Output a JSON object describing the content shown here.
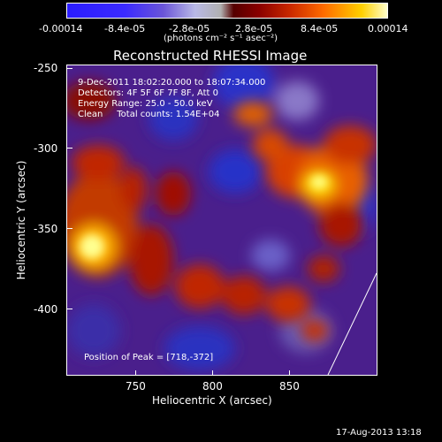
{
  "colorbar": {
    "tick_labels": [
      "-0.00014",
      "-8.4e-05",
      "-2.8e-05",
      "2.8e-05",
      "8.4e-05",
      "0.00014"
    ],
    "units": "(photons cm⁻² s⁻¹ asec⁻²)"
  },
  "title": "Reconstructed RHESSI Image",
  "info": {
    "time": "9-Dec-2011 18:02:20.000 to 18:07:34.000",
    "detectors": "Detectors: 4F 5F 6F 7F 8F, Att 0",
    "energy": "Energy Range: 25.0 - 50.0 keV",
    "method": "Clean     Total counts: 1.54E+04"
  },
  "peak": "Position of Peak = [718,-372]",
  "axes": {
    "xlabel": "Heliocentric X (arcsec)",
    "ylabel": "Heliocentric Y (arcsec)",
    "x_ticks": [
      "750",
      "800",
      "850"
    ],
    "y_ticks": [
      "-250",
      "-300",
      "-350",
      "-400"
    ]
  },
  "footer_date": "17-Aug-2013 13:18"
}
